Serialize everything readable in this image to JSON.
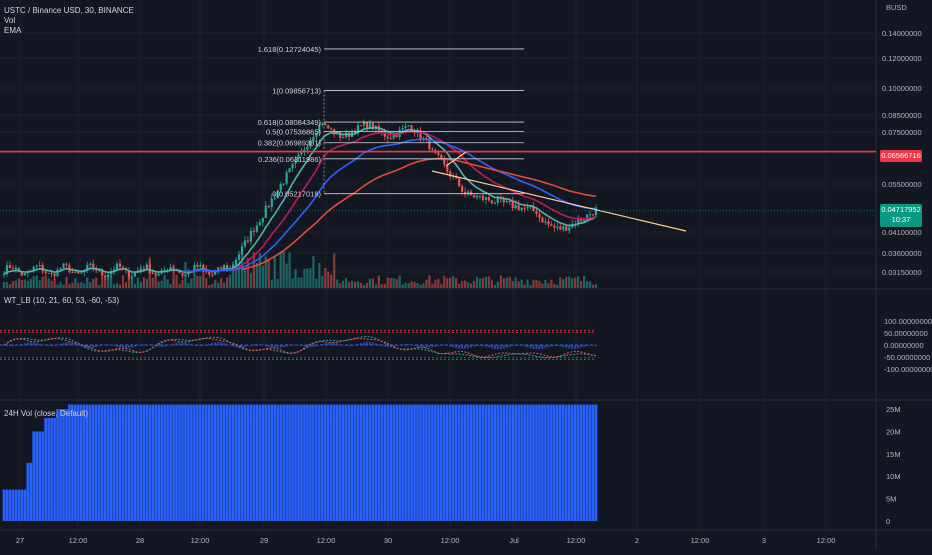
{
  "header": {
    "symbol_title": "USTC / Binance USD, 30, BINANCE",
    "vol_label": "Vol",
    "ema_label": "EMA"
  },
  "price_axis": {
    "currency": "BUSD",
    "ticks": [
      "0.14000000",
      "0.12000000",
      "0.10000000",
      "0.08500000",
      "0.07500000",
      "0.06500000",
      "0.05500000",
      "0.04100000",
      "0.03600000",
      "0.03150000"
    ]
  },
  "fib_levels": [
    {
      "label": "1.618(0.12724045)",
      "value": 0.12724045
    },
    {
      "label": "1(0.09856713)",
      "value": 0.09856713
    },
    {
      "label": "0.618(0.08084349)",
      "value": 0.08084349
    },
    {
      "label": "0.5(0.07536865)",
      "value": 0.07536865
    },
    {
      "label": "0.382(0.06989381)",
      "value": 0.06989381
    },
    {
      "label": "0.236(0.06311986)",
      "value": 0.06311986
    },
    {
      "label": "0(0.05217018)",
      "value": 0.05217018
    }
  ],
  "horizontal_line": {
    "value": "0.06566716",
    "color": "#f23645"
  },
  "last_price": {
    "value": "0.04717952",
    "countdown": "10:37",
    "color": "#089981"
  },
  "oscillator": {
    "title": "WT_LB (10, 21, 60, 53, -60, -53)",
    "ticks": [
      "100.00000000",
      "50.00000000",
      "0.00000000",
      "-50.00000000",
      "-100.00000000"
    ]
  },
  "vol24": {
    "title": "24H Vol (close, Default)",
    "ticks": [
      "25M",
      "20M",
      "15M",
      "10M",
      "5M",
      "0"
    ],
    "bar_color": "#2962ff"
  },
  "time_axis": {
    "ticks": [
      "27",
      "12:00",
      "28",
      "12:00",
      "29",
      "12:00",
      "30",
      "12:00",
      "Jul",
      "12:00",
      "2",
      "12:00",
      "3",
      "12:00"
    ]
  },
  "colors": {
    "bg": "#131722",
    "up": "#26a69a",
    "down": "#ef5350",
    "ema_fast": "#4fb3b0",
    "ema_mid": "#c2185b",
    "ema_slow": "#2962ff",
    "ema_long": "#e64a3c",
    "trendline": "#ffcc99"
  },
  "chart_data": [
    {
      "type": "candlestick",
      "title": "USTC / Binance USD, 30, BINANCE",
      "ylabel": "BUSD",
      "ylim": [
        0.028,
        0.148
      ],
      "x": [
        "27",
        "12:00",
        "28",
        "12:00",
        "29",
        "12:00",
        "30",
        "12:00",
        "Jul",
        "12:00"
      ],
      "series": [
        {
          "name": "close (approx, per session tick)",
          "values": [
            0.0315,
            0.0316,
            0.0318,
            0.032,
            0.05,
            0.082,
            0.076,
            0.056,
            0.052,
            0.047
          ]
        }
      ],
      "fib_retracement": [
        0.12724045,
        0.09856713,
        0.08084349,
        0.07536865,
        0.06989381,
        0.06311986,
        0.05217018
      ],
      "horizontal_line": 0.06566716,
      "last_price": 0.04717952
    },
    {
      "type": "line",
      "title": "WT_LB (10, 21, 60, 53, -60, -53)",
      "ylim": [
        -100,
        100
      ],
      "levels": [
        60,
        53,
        -60,
        -53
      ]
    },
    {
      "type": "bar",
      "title": "24H Vol (close, Default)",
      "ylim": [
        0,
        25000000
      ],
      "series": [
        {
          "name": "24H Vol",
          "values": [
            7000000,
            7000000,
            13000000,
            20000000,
            24000000,
            26000000,
            26000000
          ]
        }
      ]
    }
  ]
}
